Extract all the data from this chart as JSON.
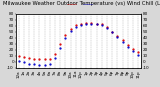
{
  "title": "Milwaukee Weather Outdoor Temperature (vs) Wind Chill (Last 24 Hours)",
  "bg_color": "#d8d8d8",
  "plot_bg_color": "#ffffff",
  "right_bg_color": "#d8d8d8",
  "temp_color": "#dd0000",
  "wind_chill_color": "#0000cc",
  "ylim": [
    -10,
    80
  ],
  "yticks_left": [
    -10,
    0,
    10,
    20,
    30,
    40,
    50,
    60,
    70,
    80
  ],
  "yticks_right": [
    -10,
    0,
    10,
    20,
    30,
    40,
    50,
    60,
    70,
    80
  ],
  "hours": [
    0,
    1,
    2,
    3,
    4,
    5,
    6,
    7,
    8,
    9,
    10,
    11,
    12,
    13,
    14,
    15,
    16,
    17,
    18,
    19,
    20,
    21,
    22,
    23
  ],
  "temp": [
    10,
    8,
    6,
    5,
    4,
    4,
    5,
    13,
    29,
    44,
    55,
    61,
    64,
    65,
    65,
    64,
    63,
    58,
    50,
    43,
    36,
    28,
    22,
    16
  ],
  "wind_chill": [
    1,
    -1,
    -3,
    -4,
    -5,
    -5,
    -4,
    6,
    23,
    39,
    51,
    58,
    62,
    64,
    64,
    63,
    62,
    57,
    49,
    41,
    33,
    25,
    18,
    11
  ],
  "title_fontsize": 3.8,
  "tick_fontsize": 3.0,
  "marker_size": 1.2,
  "grid_color": "#aaaaaa",
  "grid_lw": 0.3
}
